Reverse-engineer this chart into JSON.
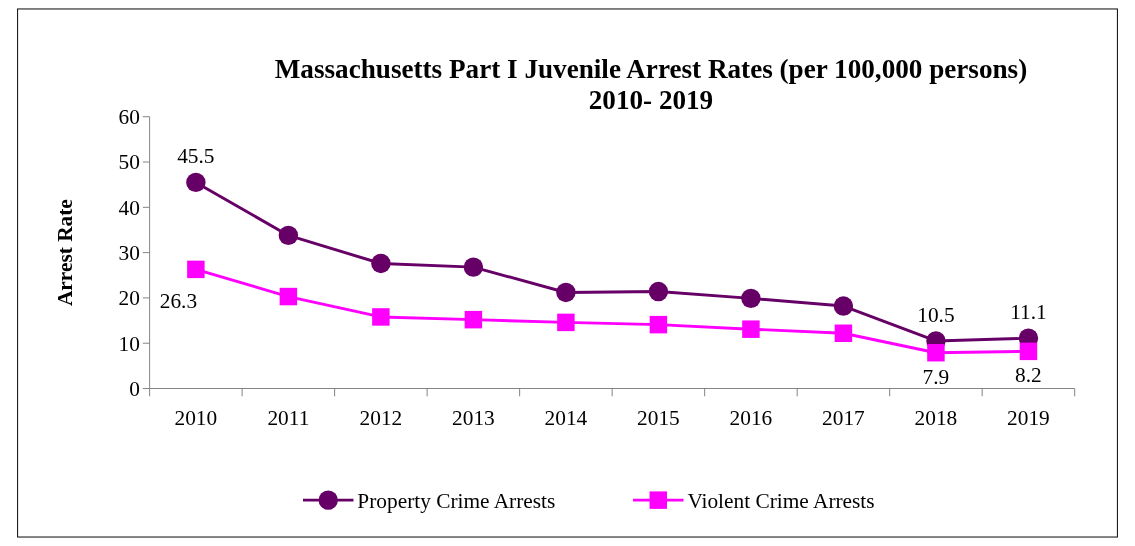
{
  "chart_data": {
    "type": "line",
    "title": "Massachusetts Part I Juvenile Arrest Rates (per 100,000 persons)\n2010- 2019",
    "ylabel": "Arrest Rate",
    "categories": [
      "2010",
      "2011",
      "2012",
      "2013",
      "2014",
      "2015",
      "2016",
      "2017",
      "2018",
      "2019"
    ],
    "series": [
      {
        "name": "Property Crime Arrests",
        "color": "#660066",
        "marker": "circle",
        "values": [
          45.5,
          33.8,
          27.6,
          26.8,
          21.2,
          21.4,
          19.9,
          18.2,
          10.5,
          11.1
        ],
        "value_labels": [
          "45.5",
          null,
          null,
          null,
          null,
          null,
          null,
          null,
          "10.5",
          "11.1"
        ]
      },
      {
        "name": "Violent Crime Arrests",
        "color": "#ff00ff",
        "marker": "square",
        "values": [
          26.3,
          20.3,
          15.8,
          15.2,
          14.6,
          14.1,
          13.1,
          12.2,
          7.9,
          8.2
        ],
        "value_labels": [
          "26.3",
          null,
          null,
          null,
          null,
          null,
          null,
          null,
          "7.9",
          "8.2"
        ]
      }
    ],
    "ylim": [
      0,
      60
    ],
    "yticks": [
      0,
      10,
      20,
      30,
      40,
      50,
      60
    ],
    "grid": false,
    "legend": "bottom"
  }
}
